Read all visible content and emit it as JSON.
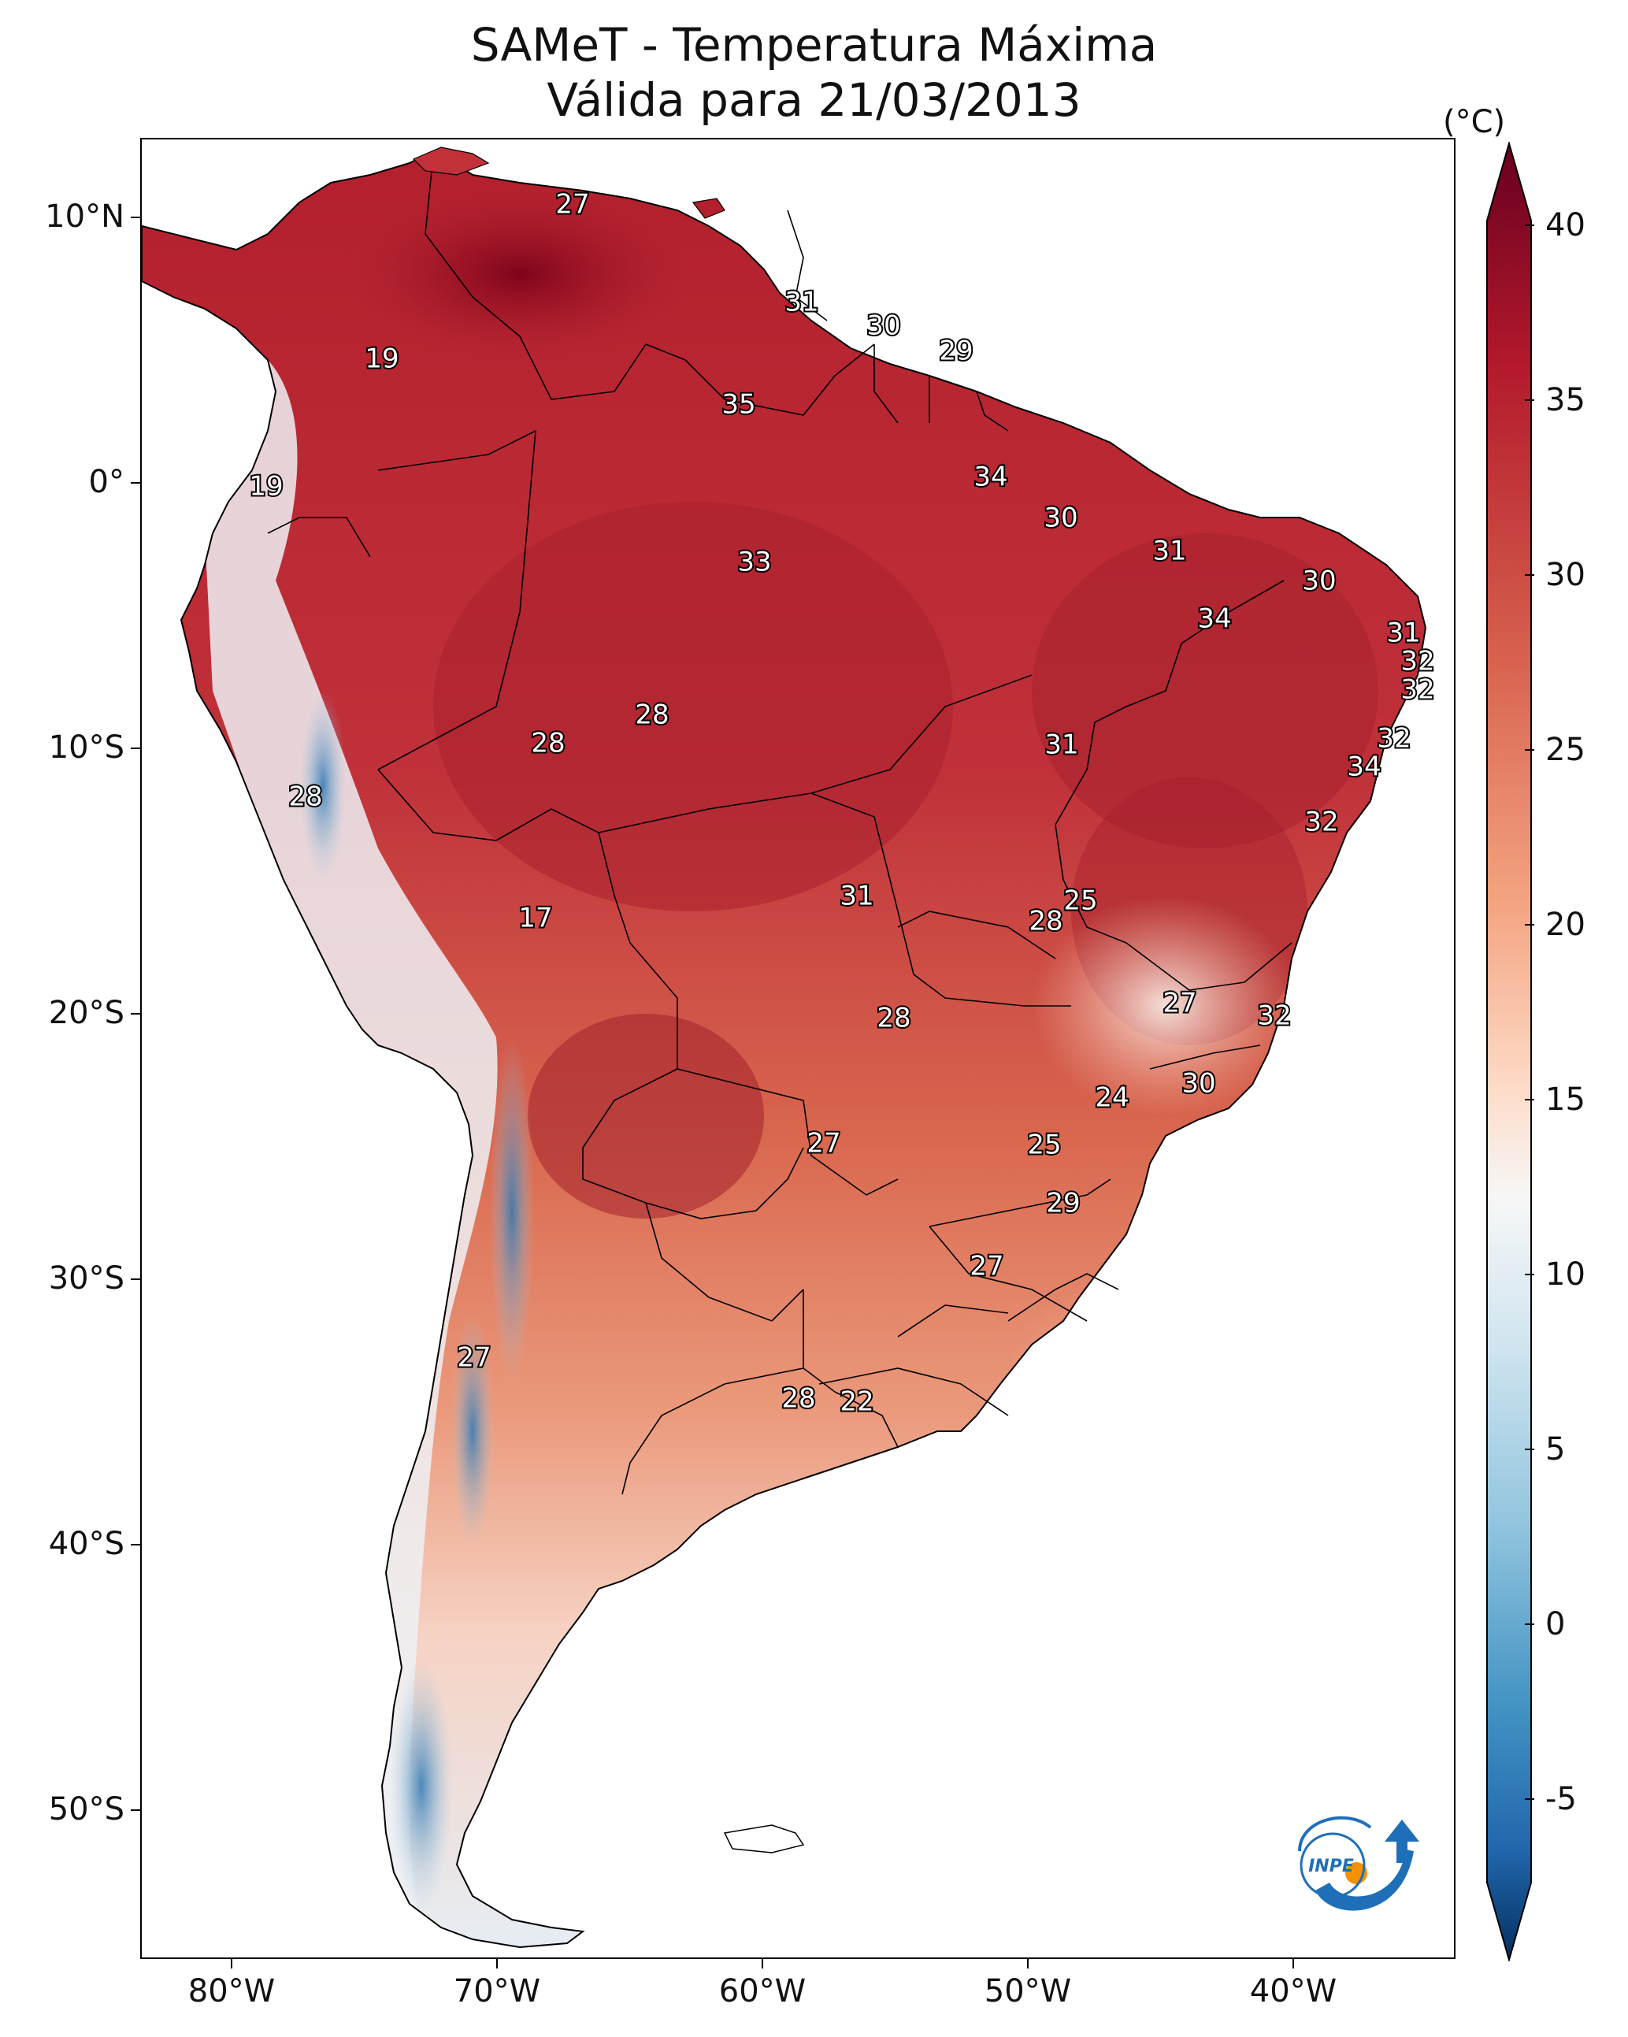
{
  "title": {
    "line1": "SAMeT - Temperatura Máxima",
    "line2": "Válida para 21/03/2013"
  },
  "axes": {
    "lat_labels": [
      "10°N",
      "0°",
      "10°S",
      "20°S",
      "30°S",
      "40°S",
      "50°S"
    ],
    "lon_labels": [
      "80°W",
      "70°W",
      "60°W",
      "50°W",
      "40°W"
    ]
  },
  "colorbar": {
    "unit": "(°C)",
    "min": -7,
    "max": 42,
    "ticks": [
      "40",
      "35",
      "30",
      "25",
      "20",
      "15",
      "10",
      "5",
      "0",
      "-5"
    ]
  },
  "contour_labels": [
    "27",
    "31",
    "30",
    "29",
    "19",
    "35",
    "34",
    "19",
    "30",
    "33",
    "31",
    "30",
    "34",
    "31",
    "32",
    "32",
    "28",
    "28",
    "31",
    "32",
    "34",
    "28",
    "32",
    "17",
    "25",
    "31",
    "28",
    "27",
    "32",
    "28",
    "30",
    "24",
    "27",
    "25",
    "29",
    "27",
    "27",
    "28",
    "22"
  ],
  "colors": {
    "hot": "#8b0a1f",
    "warm": "#c8383d",
    "mild": "#f2b9a0",
    "neutral": "#f7f7f7",
    "cold": "#2f79b5",
    "inpe_blue": "#1f6fb8",
    "inpe_orange": "#f39200"
  },
  "logo": {
    "text": "INPE"
  }
}
